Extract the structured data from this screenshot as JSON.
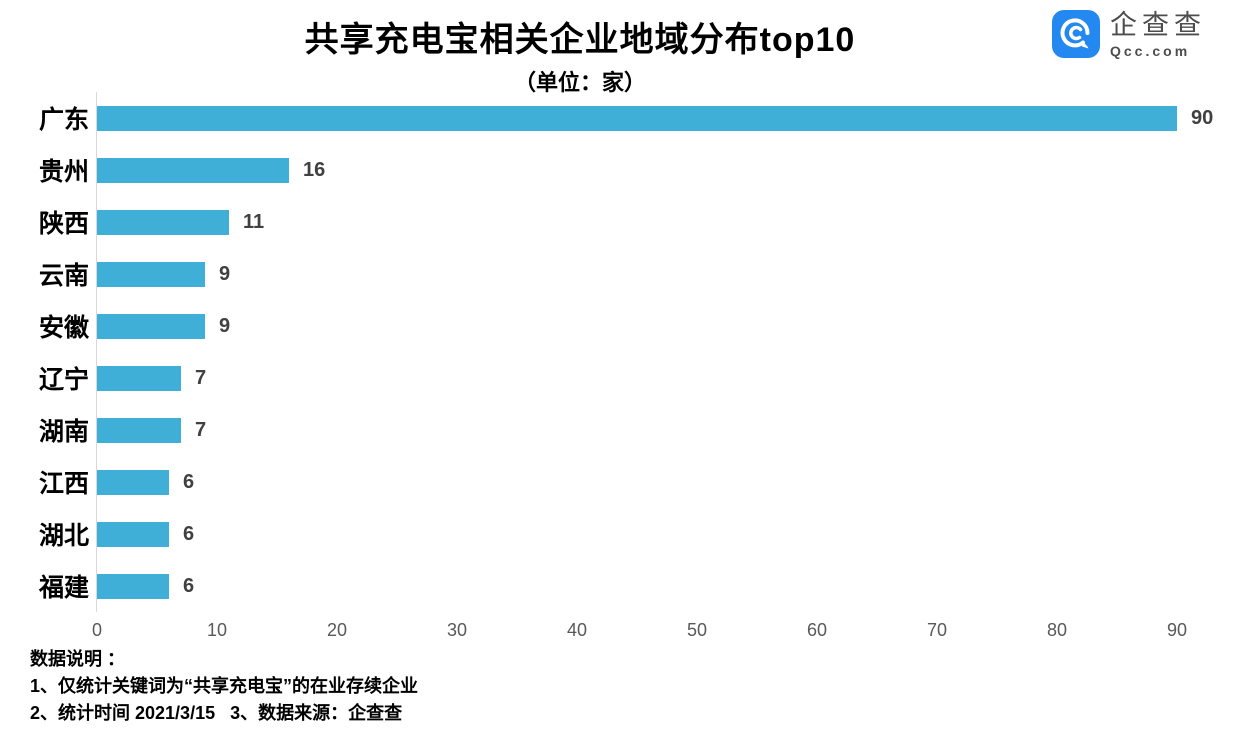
{
  "header": {
    "title": "共享充电宝相关企业地域分布top10",
    "subtitle": "（单位：家）"
  },
  "logo": {
    "name": "企查查",
    "domain": "Qcc.com",
    "icon": "qcc-magnifier-icon",
    "icon_color": "#2388f0",
    "text_color": "#4d4d4d"
  },
  "chart_data": {
    "type": "bar",
    "orientation": "horizontal",
    "title": "共享充电宝相关企业地域分布top10",
    "subtitle": "（单位：家）",
    "unit": "家",
    "categories": [
      "广东",
      "贵州",
      "陕西",
      "云南",
      "安徽",
      "辽宁",
      "湖南",
      "江西",
      "湖北",
      "福建"
    ],
    "values": [
      90,
      16,
      11,
      9,
      9,
      7,
      7,
      6,
      6,
      6
    ],
    "xlim": [
      0,
      90
    ],
    "x_ticks": [
      0,
      10,
      20,
      30,
      40,
      50,
      60,
      70,
      80,
      90
    ],
    "bar_color": "#3fafd7",
    "grid": false,
    "legend": false,
    "value_labels": true
  },
  "footer": {
    "heading": "数据说明 ：",
    "lines": [
      "1、仅统计关键词为“共享充电宝”的在业存续企业",
      "2、统计时间 2021/3/15   3、数据来源：企查查"
    ]
  }
}
